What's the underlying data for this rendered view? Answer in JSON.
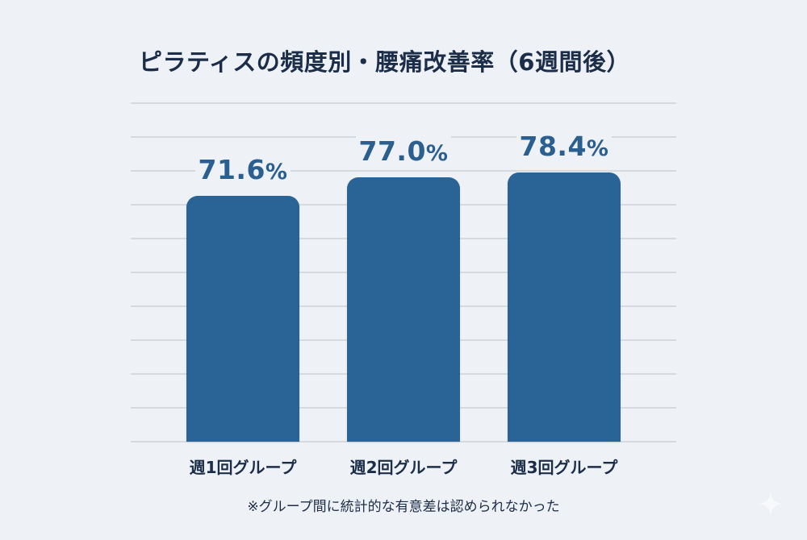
{
  "title": "ピラティスの頻度別・腰痛改善率（6週間後）",
  "footnote": "※グループ間に統計的な有意差は認められなかった",
  "colors": {
    "background": "#eef1f5",
    "bar": "#2a6496",
    "value_text": "#2a5f8f",
    "title_text": "#1b2d48",
    "gridline": "#d6d9de"
  },
  "chart_data": {
    "type": "bar",
    "title": "ピラティスの頻度別・腰痛改善率（6週間後）",
    "categories": [
      "週1回グループ",
      "週2回グループ",
      "週3回グループ"
    ],
    "values": [
      71.6,
      77.0,
      78.4
    ],
    "value_labels": [
      "71.6%",
      "77.0%",
      "78.4%"
    ],
    "unit": "%",
    "xlabel": "",
    "ylabel": "",
    "ylim": [
      0,
      100
    ],
    "grid": true,
    "grid_step": 10,
    "y_tick_labels_visible": false,
    "legend": null,
    "annotations": [
      "※グループ間に統計的な有意差は認められなかった"
    ]
  },
  "bars": [
    {
      "category": "週1回グループ",
      "value_num": "71.6",
      "value_unit": "%"
    },
    {
      "category": "週2回グループ",
      "value_num": "77.0",
      "value_unit": "%"
    },
    {
      "category": "週3回グループ",
      "value_num": "78.4",
      "value_unit": "%"
    }
  ],
  "watermark_icon": "sparkle-icon"
}
